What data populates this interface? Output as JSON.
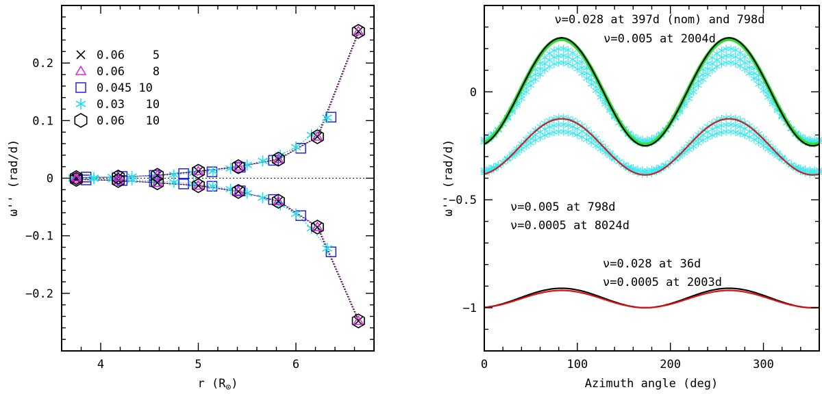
{
  "chart_data": [
    {
      "type": "scatter",
      "panel": "left",
      "xlabel_main": "r (R",
      "xlabel_sub": "⊙",
      "xlabel_end": ")",
      "ylabel": "ω'' (rad/d)",
      "xlim": [
        3.6,
        6.8
      ],
      "ylim": [
        -0.3,
        0.3
      ],
      "xticks": [
        4,
        5,
        6
      ],
      "xtick_labels": [
        "4",
        "5",
        "6"
      ],
      "yticks": [
        -0.2,
        -0.1,
        0,
        0.1,
        0.2
      ],
      "ytick_labels": [
        "−0.2",
        "−0.1",
        "0",
        "0.1",
        "0.2"
      ],
      "legend_position": "top-left",
      "legend": [
        {
          "marker": "cross",
          "color": "#000000",
          "label": "0.06    5"
        },
        {
          "marker": "triangle",
          "color": "#e020e0",
          "label": "0.06    8"
        },
        {
          "marker": "square",
          "color": "#2020e0",
          "label": "0.045 10"
        },
        {
          "marker": "star",
          "color": "#20e0f0",
          "label": "0.03   10"
        },
        {
          "marker": "hexagon",
          "color": "#000000",
          "label": "0.06   10"
        }
      ],
      "series": [
        {
          "name": "0.045 10",
          "marker": "square",
          "color": "#2020e0",
          "x": [
            3.85,
            4.22,
            4.55,
            4.85,
            5.14,
            5.43,
            5.77,
            6.05,
            6.36
          ],
          "y_pos": [
            0.002,
            0.003,
            0.005,
            0.008,
            0.011,
            0.019,
            0.031,
            0.052,
            0.106
          ],
          "y_neg": [
            -0.003,
            -0.004,
            -0.006,
            -0.01,
            -0.014,
            -0.022,
            -0.037,
            -0.065,
            -0.128
          ]
        },
        {
          "name": "0.03 10",
          "marker": "star",
          "color": "#20e0f0",
          "x": [
            3.72,
            3.93,
            4.12,
            4.32,
            4.55,
            4.75,
            4.95,
            5.15,
            5.33,
            5.5,
            5.66,
            5.84,
            6.0,
            6.16,
            6.32
          ],
          "y_pos": [
            0.001,
            0.001,
            0.002,
            0.003,
            0.004,
            0.006,
            0.009,
            0.012,
            0.017,
            0.023,
            0.03,
            0.04,
            0.054,
            0.075,
            0.105
          ],
          "y_neg": [
            -0.001,
            -0.001,
            -0.002,
            -0.003,
            -0.005,
            -0.007,
            -0.01,
            -0.014,
            -0.019,
            -0.026,
            -0.034,
            -0.046,
            -0.062,
            -0.087,
            -0.122
          ]
        },
        {
          "name": "0.06 5",
          "marker": "cross",
          "color": "#000000",
          "x": [
            3.75,
            4.18,
            4.58,
            5.0,
            5.41,
            5.82,
            6.22,
            6.64
          ],
          "y_pos": [
            0.001,
            0.002,
            0.005,
            0.012,
            0.02,
            0.033,
            0.072,
            0.255
          ],
          "y_neg": [
            -0.002,
            -0.004,
            -0.008,
            -0.013,
            -0.023,
            -0.04,
            -0.085,
            -0.248
          ]
        },
        {
          "name": "0.06 8",
          "marker": "triangle",
          "color": "#e020e0",
          "x": [
            3.75,
            4.18,
            4.58,
            5.0,
            5.41,
            5.82,
            6.22,
            6.64
          ],
          "y_pos": [
            0.001,
            0.002,
            0.005,
            0.012,
            0.02,
            0.033,
            0.072,
            0.255
          ],
          "y_neg": [
            -0.002,
            -0.004,
            -0.008,
            -0.013,
            -0.023,
            -0.04,
            -0.085,
            -0.248
          ]
        },
        {
          "name": "0.06 10",
          "marker": "hexagon",
          "color": "#000000",
          "x": [
            3.75,
            4.18,
            4.58,
            5.0,
            5.41,
            5.82,
            6.22,
            6.64
          ],
          "y_pos": [
            0.001,
            0.002,
            0.005,
            0.012,
            0.02,
            0.033,
            0.072,
            0.255
          ],
          "y_neg": [
            -0.002,
            -0.004,
            -0.008,
            -0.013,
            -0.023,
            -0.04,
            -0.085,
            -0.248
          ]
        }
      ]
    },
    {
      "type": "line",
      "panel": "right",
      "xlabel": "Azimuth angle (deg)",
      "ylabel": "ω'' (rad/d)",
      "xlim": [
        0,
        360
      ],
      "ylim": [
        -1.2,
        0.4
      ],
      "xticks": [
        0,
        100,
        200,
        300
      ],
      "xtick_labels": [
        "0",
        "100",
        "200",
        "300"
      ],
      "yticks": [
        -1,
        -0.5,
        0
      ],
      "ytick_labels": [
        "−1",
        "−0.5",
        "0"
      ],
      "annotations": [
        {
          "text": "ν=0.028 at 397d (nom) and 798d",
          "anchor": "top-center"
        },
        {
          "text": "ν=0.005 at 2004d",
          "anchor": "top-center"
        },
        {
          "text": "ν=0.005 at  798d",
          "anchor": "middle-left"
        },
        {
          "text": "ν=0.0005 at 8024d",
          "anchor": "middle-left"
        },
        {
          "text": "ν=0.028 at   36d",
          "anchor": "lower-center"
        },
        {
          "text": "ν=0.0005 at 2003d",
          "anchor": "lower-center"
        }
      ],
      "series": [
        {
          "name": "ν=0.028 at 397d",
          "color": "#000000",
          "mean": 0.0,
          "amplitude": 0.25,
          "style": "line"
        },
        {
          "name": "ν=0.005 at 2004d",
          "color": "#30e030",
          "mean": 0.0,
          "amplitude": 0.245,
          "style": "thick-line"
        },
        {
          "name": "ν=0.028 at 798d (upper band)",
          "color": "#40e8f0",
          "mean": -0.02,
          "amplitude": 0.22,
          "style": "star-band"
        },
        {
          "name": "ν=0.005 at 798d (lower band)",
          "color": "#40e8f0",
          "mean": -0.25,
          "amplitude": 0.13,
          "style": "star-band"
        },
        {
          "name": "ν=0.0005 at 8024d",
          "color": "#cc2020",
          "mean": -0.255,
          "amplitude": 0.13,
          "style": "line"
        },
        {
          "name": "ν=0.028 at 36d",
          "color": "#000000",
          "mean": -0.955,
          "amplitude": 0.045,
          "style": "line"
        },
        {
          "name": "ν=0.0005 at 2003d",
          "color": "#dd1010",
          "mean": -0.96,
          "amplitude": 0.04,
          "style": "line"
        }
      ]
    }
  ]
}
